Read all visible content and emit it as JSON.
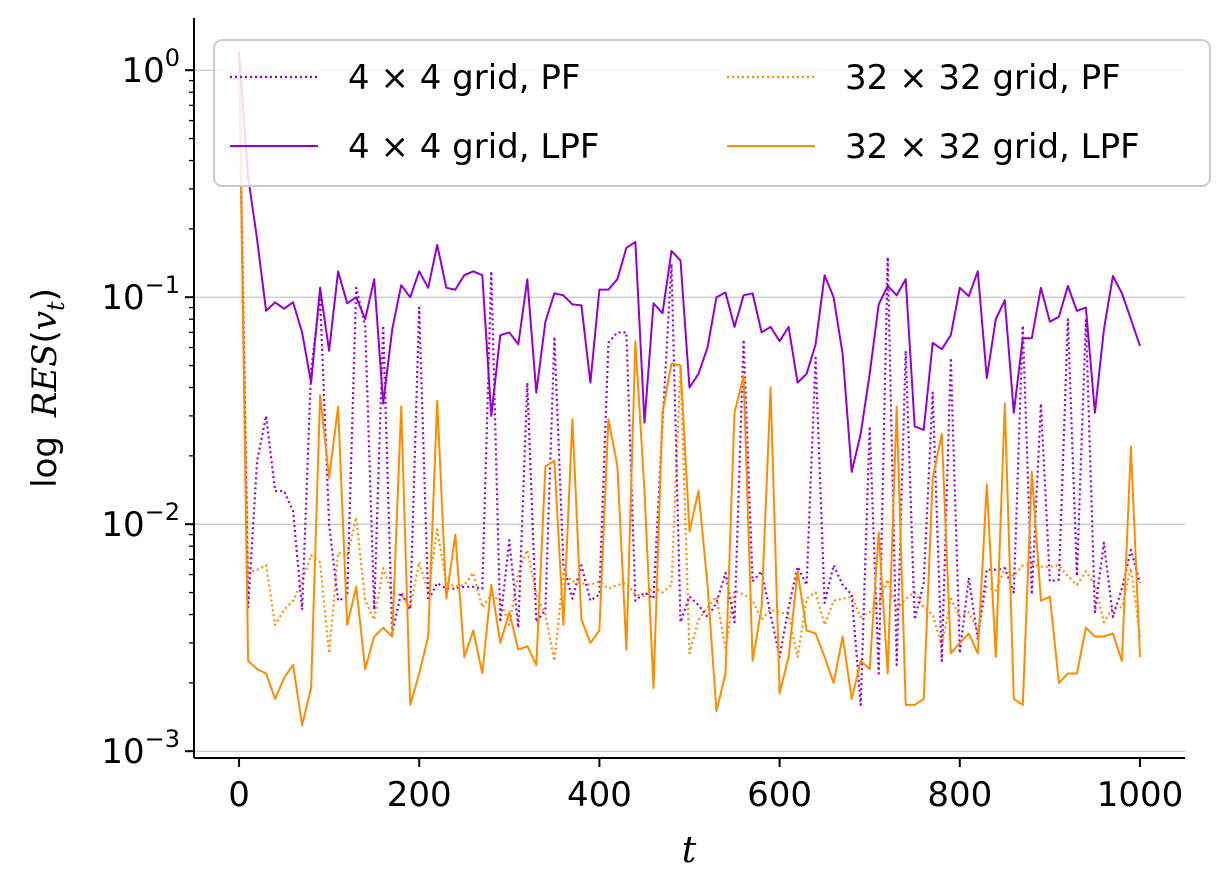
{
  "chart_data": {
    "type": "line",
    "title": "",
    "xlabel": "t",
    "ylabel": "log RES(v_t)",
    "ylabel_parts": {
      "prefix": "log",
      "func": "RES",
      "paren_open": "(",
      "var": "v",
      "sub": "t",
      "paren_close": ")"
    },
    "xlim": [
      -50,
      1050
    ],
    "ylim_log10": [
      -3.03,
      0.23
    ],
    "yscale": "log",
    "x_ticks": [
      0,
      200,
      400,
      600,
      800,
      1000
    ],
    "x_tick_labels": [
      "0",
      "200",
      "400",
      "600",
      "800",
      "1000"
    ],
    "y_ticks_exp": [
      0,
      -1,
      -2,
      -3
    ],
    "y_tick_bases": [
      "10",
      "10",
      "10",
      "10"
    ],
    "y_tick_exps": [
      "0",
      "−1",
      "−2",
      "−3"
    ],
    "grid": "major-y",
    "legend_position": "top",
    "x": [
      0,
      10,
      20,
      30,
      40,
      50,
      60,
      70,
      80,
      90,
      100,
      110,
      120,
      130,
      140,
      150,
      160,
      170,
      180,
      190,
      200,
      210,
      220,
      230,
      240,
      250,
      260,
      270,
      280,
      290,
      300,
      310,
      320,
      330,
      340,
      350,
      360,
      370,
      380,
      390,
      400,
      410,
      420,
      430,
      440,
      450,
      460,
      470,
      480,
      490,
      500,
      510,
      520,
      530,
      540,
      550,
      560,
      570,
      580,
      590,
      600,
      610,
      620,
      630,
      640,
      650,
      660,
      670,
      680,
      690,
      700,
      710,
      720,
      730,
      740,
      750,
      760,
      770,
      780,
      790,
      800,
      810,
      820,
      830,
      840,
      850,
      860,
      870,
      880,
      890,
      900,
      910,
      920,
      930,
      940,
      950,
      960,
      970,
      980,
      990,
      1000
    ],
    "series": [
      {
        "name": "4 × 4 grid, PF",
        "legend_label": "4 × 4 grid, PF",
        "color": "#9400D3",
        "style": "dotted",
        "values": [
          1.1,
          0.0043,
          0.019,
          0.03,
          0.014,
          0.014,
          0.0114,
          0.0042,
          0.048,
          0.1,
          0.01,
          0.0046,
          0.0048,
          0.11,
          0.075,
          0.0042,
          0.075,
          0.0033,
          0.005,
          0.0042,
          0.09,
          0.0046,
          0.0055,
          0.0052,
          0.0052,
          0.0053,
          0.0053,
          0.0052,
          0.13,
          0.0037,
          0.0085,
          0.0035,
          0.042,
          0.0037,
          0.0042,
          0.067,
          0.0066,
          0.0047,
          0.0066,
          0.0046,
          0.0049,
          0.063,
          0.07,
          0.07,
          0.0046,
          0.005,
          0.0047,
          0.028,
          0.14,
          0.0037,
          0.0048,
          0.0044,
          0.0039,
          0.0045,
          0.0061,
          0.0037,
          0.065,
          0.0056,
          0.0062,
          0.004,
          0.0026,
          0.0043,
          0.0065,
          0.0054,
          0.054,
          0.0045,
          0.0066,
          0.0054,
          0.0049,
          0.0016,
          0.027,
          0.0022,
          0.15,
          0.0024,
          0.058,
          0.0038,
          0.0055,
          0.038,
          0.0025,
          0.054,
          0.0027,
          0.0058,
          0.0031,
          0.0063,
          0.0063,
          0.0064,
          0.005,
          0.075,
          0.0049,
          0.034,
          0.0056,
          0.0057,
          0.08,
          0.0059,
          0.079,
          0.0041,
          0.0083,
          0.0039,
          0.0052,
          0.0077,
          0.0055
        ]
      },
      {
        "name": "4 × 4 grid, LPF",
        "legend_label": "4 × 4 grid, LPF",
        "color": "#9400D3",
        "style": "solid",
        "values": [
          1.2,
          0.34,
          0.18,
          0.087,
          0.095,
          0.089,
          0.095,
          0.07,
          0.042,
          0.11,
          0.058,
          0.13,
          0.094,
          0.1,
          0.08,
          0.12,
          0.034,
          0.072,
          0.113,
          0.1,
          0.13,
          0.11,
          0.17,
          0.11,
          0.108,
          0.125,
          0.13,
          0.125,
          0.03,
          0.068,
          0.07,
          0.062,
          0.12,
          0.038,
          0.078,
          0.104,
          0.102,
          0.093,
          0.092,
          0.042,
          0.108,
          0.108,
          0.12,
          0.165,
          0.175,
          0.028,
          0.094,
          0.085,
          0.16,
          0.145,
          0.04,
          0.046,
          0.06,
          0.1,
          0.105,
          0.074,
          0.102,
          0.104,
          0.07,
          0.074,
          0.064,
          0.074,
          0.042,
          0.046,
          0.062,
          0.125,
          0.1,
          0.056,
          0.017,
          0.025,
          0.046,
          0.093,
          0.112,
          0.102,
          0.12,
          0.027,
          0.026,
          0.063,
          0.059,
          0.068,
          0.11,
          0.101,
          0.13,
          0.044,
          0.08,
          0.097,
          0.031,
          0.066,
          0.066,
          0.11,
          0.078,
          0.082,
          0.112,
          0.087,
          0.09,
          0.031,
          0.072,
          0.124,
          0.104,
          0.08,
          0.061
        ]
      },
      {
        "name": "32 × 32 grid, PF",
        "legend_label": "32 × 32 grid, PF",
        "color": "#FF8C00",
        "style": "dotted",
        "values": [
          1.2,
          0.0061,
          0.0063,
          0.0066,
          0.0036,
          0.0042,
          0.0046,
          0.0056,
          0.0073,
          0.0068,
          0.0027,
          0.0075,
          0.0072,
          0.0107,
          0.0046,
          0.0038,
          0.0064,
          0.0049,
          0.0049,
          0.0043,
          0.0068,
          0.005,
          0.0095,
          0.0055,
          0.0053,
          0.0054,
          0.0061,
          0.0043,
          0.0049,
          0.0046,
          0.0036,
          0.0061,
          0.0077,
          0.0049,
          0.004,
          0.0025,
          0.0061,
          0.0056,
          0.0055,
          0.0054,
          0.0056,
          0.0052,
          0.0054,
          0.0055,
          0.0049,
          0.0048,
          0.0053,
          0.005,
          0.0054,
          0.05,
          0.0027,
          0.0038,
          0.0043,
          0.0048,
          0.0028,
          0.0051,
          0.0049,
          0.0046,
          0.0038,
          0.0042,
          0.0041,
          0.004,
          0.0026,
          0.0047,
          0.005,
          0.0036,
          0.0046,
          0.0047,
          0.0048,
          0.0039,
          0.0041,
          0.0045,
          0.0057,
          0.0042,
          0.0047,
          0.005,
          0.0043,
          0.004,
          0.0029,
          0.0047,
          0.0039,
          0.0041,
          0.0034,
          0.0053,
          0.0051,
          0.0064,
          0.0059,
          0.0066,
          0.0067,
          0.0065,
          0.0065,
          0.0066,
          0.0059,
          0.0054,
          0.0062,
          0.0054,
          0.0037,
          0.0043,
          0.0043,
          0.0064,
          0.0032
        ]
      },
      {
        "name": "32 × 32 grid, LPF",
        "legend_label": "32 × 32 grid, LPF",
        "color": "#FF8C00",
        "style": "solid",
        "values": [
          1.2,
          0.0025,
          0.0023,
          0.0022,
          0.0017,
          0.0021,
          0.0024,
          0.0013,
          0.0019,
          0.037,
          0.016,
          0.033,
          0.0036,
          0.0053,
          0.0023,
          0.0032,
          0.0035,
          0.0032,
          0.033,
          0.0016,
          0.0022,
          0.0032,
          0.035,
          0.0047,
          0.009,
          0.0026,
          0.0034,
          0.0022,
          0.0054,
          0.003,
          0.0041,
          0.0028,
          0.0029,
          0.0024,
          0.018,
          0.019,
          0.0036,
          0.029,
          0.0038,
          0.003,
          0.0034,
          0.029,
          0.018,
          0.0028,
          0.064,
          0.014,
          0.0019,
          0.031,
          0.051,
          0.05,
          0.0093,
          0.014,
          0.0054,
          0.0015,
          0.0022,
          0.031,
          0.045,
          0.0025,
          0.0043,
          0.04,
          0.0018,
          0.0026,
          0.0062,
          0.0034,
          0.0033,
          0.0026,
          0.002,
          0.0032,
          0.0017,
          0.0025,
          0.0023,
          0.0092,
          0.0022,
          0.033,
          0.0016,
          0.0016,
          0.0017,
          0.016,
          0.025,
          0.0027,
          0.003,
          0.0033,
          0.0027,
          0.015,
          0.0026,
          0.034,
          0.0017,
          0.0016,
          0.017,
          0.0046,
          0.0048,
          0.002,
          0.0022,
          0.0022,
          0.0035,
          0.0032,
          0.0032,
          0.0033,
          0.0025,
          0.022,
          0.0026
        ]
      }
    ]
  }
}
